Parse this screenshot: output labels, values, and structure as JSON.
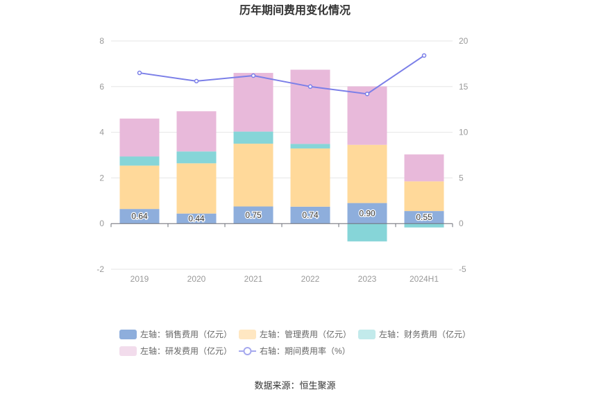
{
  "chart_data": {
    "type": "bar",
    "title": "历年期间费用变化情况",
    "categories": [
      "2019",
      "2020",
      "2021",
      "2022",
      "2023",
      "2024H1"
    ],
    "left_axis": {
      "min": -2,
      "max": 8,
      "ticks": [
        "-2",
        "0",
        "2",
        "4",
        "6",
        "8"
      ]
    },
    "right_axis": {
      "min": -5,
      "max": 20,
      "ticks": [
        "-5",
        "0",
        "5",
        "10",
        "15",
        "20"
      ]
    },
    "series": [
      {
        "name": "左轴：销售费用（亿元）",
        "axis": "left",
        "type": "bar",
        "color": "#8eaedc",
        "values": [
          0.64,
          0.44,
          0.75,
          0.74,
          0.9,
          0.55
        ],
        "labels": [
          "0.64",
          "0.44",
          "0.75",
          "0.74",
          "0.90",
          "0.55"
        ]
      },
      {
        "name": "左轴：管理费用（亿元）",
        "axis": "left",
        "type": "bar",
        "color": "#ffd99a",
        "values": [
          1.9,
          2.2,
          2.75,
          2.55,
          2.55,
          1.3
        ]
      },
      {
        "name": "左轴：财务费用（亿元）",
        "axis": "left",
        "type": "bar",
        "color": "#86d5d8",
        "values": [
          0.4,
          0.52,
          0.53,
          0.2,
          -0.78,
          -0.17
        ]
      },
      {
        "name": "左轴：研发费用（亿元）",
        "axis": "left",
        "type": "bar",
        "color": "#e8b9da",
        "values": [
          1.66,
          1.76,
          2.57,
          3.25,
          2.56,
          1.18
        ]
      },
      {
        "name": "右轴：期间费用率（%）",
        "axis": "right",
        "type": "line",
        "color": "#7b7fe8",
        "values": [
          16.5,
          15.6,
          16.2,
          15.0,
          14.2,
          18.4
        ]
      }
    ],
    "legend_position": "bottom",
    "grid": true
  },
  "legend": {
    "items": [
      {
        "label": "左轴：销售费用（亿元）",
        "color": "#8eaedc",
        "kind": "rect"
      },
      {
        "label": "左轴：管理费用（亿元）",
        "color": "#ffe7c2",
        "kind": "rect"
      },
      {
        "label": "左轴：财务费用（亿元）",
        "color": "#c2eaeb",
        "kind": "rect"
      },
      {
        "label": "左轴：研发费用（亿元）",
        "color": "#f2dcec",
        "kind": "rect"
      },
      {
        "label": "右轴：期间费用率（%）",
        "color": "#a5a8ee",
        "kind": "line"
      }
    ]
  },
  "source": "数据来源：恒生聚源"
}
